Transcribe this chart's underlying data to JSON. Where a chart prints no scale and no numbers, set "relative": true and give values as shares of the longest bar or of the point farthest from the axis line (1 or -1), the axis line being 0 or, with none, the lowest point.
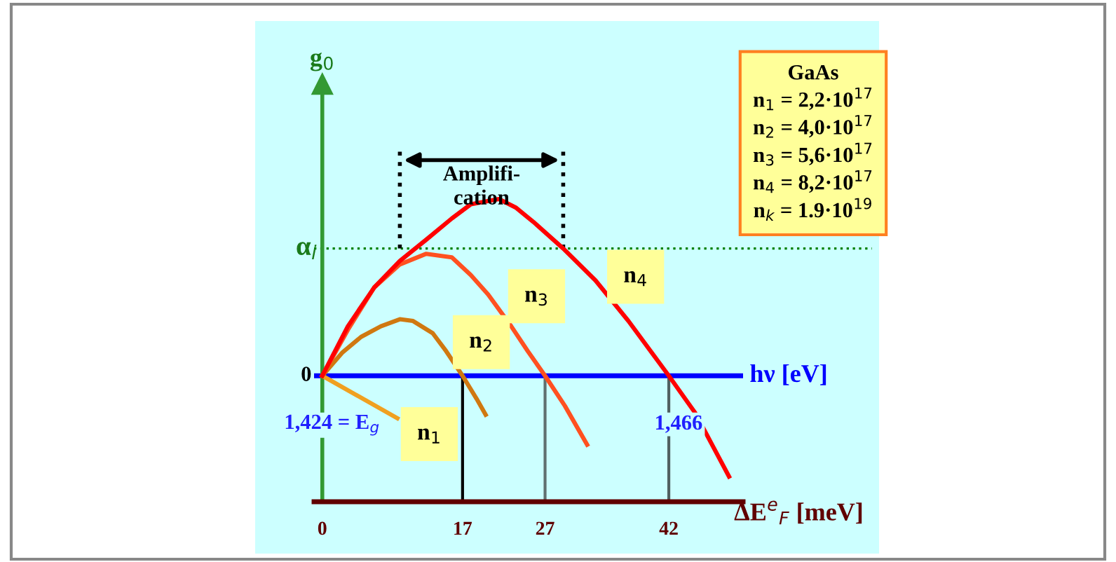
{
  "chart_data": {
    "type": "line",
    "relative": true,
    "xlabel": "ΔE$^{e}$$_{F}$ [meV]",
    "xlim": [
      -1,
      51
    ],
    "xticks": [
      0,
      17,
      27,
      42
    ],
    "series": [
      {
        "name": "n$_{1}$",
        "color": "#f0a020",
        "x": [
          0,
          9.1
        ],
        "values": [
          0,
          -0.24
        ]
      },
      {
        "name": "n$_{2}$",
        "color": "#d07810",
        "x": [
          0,
          2.4,
          4.7,
          7.1,
          9.4,
          11.0,
          13.4,
          15.0,
          17.0,
          18.7,
          19.8
        ],
        "values": [
          0,
          0.13,
          0.22,
          0.28,
          0.32,
          0.31,
          0.24,
          0.14,
          0,
          -0.13,
          -0.22
        ]
      },
      {
        "name": "n$_{3}$",
        "color": "#ff5020",
        "x": [
          0,
          3.1,
          6.3,
          9.4,
          12.6,
          15.7,
          18.0,
          20.1,
          22.9,
          24.9,
          27,
          29.4,
          32.1
        ],
        "values": [
          0,
          0.26,
          0.5,
          0.63,
          0.69,
          0.67,
          0.57,
          0.46,
          0.28,
          0.14,
          0,
          -0.17,
          -0.39
        ]
      },
      {
        "name": "n$_{4}$",
        "color": "#ff0000",
        "x": [
          0,
          3.1,
          6.3,
          9.4,
          12.6,
          15.7,
          18.0,
          21.4,
          23.5,
          25.6,
          29.2,
          33.1,
          37.1,
          42,
          45.2,
          49.3
        ],
        "values": [
          0,
          0.28,
          0.5,
          0.65,
          0.77,
          0.89,
          0.97,
          1.0,
          0.95,
          0.87,
          0.72,
          0.54,
          0.31,
          0,
          -0.21,
          -0.57
        ]
      }
    ],
    "ref_lines": [
      {
        "axis": "y",
        "value": 0.72,
        "label": "α$_{i}$",
        "color": "#008000",
        "line_style": "dotted"
      },
      {
        "axis": "y",
        "value": 0,
        "color": "#0000ff"
      },
      {
        "axis": "x",
        "value": 0,
        "color": "#339933"
      },
      {
        "axis": "x",
        "value": 9.4,
        "color": "#000000",
        "line_style": "dotted"
      },
      {
        "axis": "x",
        "value": 29.2,
        "color": "#000000",
        "line_style": "dotted"
      },
      {
        "axis": "x",
        "value": 17,
        "color": "#000000"
      },
      {
        "axis": "x",
        "value": 27,
        "color": "#607070"
      },
      {
        "axis": "x",
        "value": 42,
        "color": "#506060"
      }
    ],
    "annotations": [
      "0",
      "hν [eV]",
      "g$_{0}$",
      "Amplifi-\ncation",
      "GaAs",
      "n$_{1}$ = 2,2·10$^{17}$",
      "n$_{2}$ = 4,0·10$^{17}$",
      "n$_{3}$ = 5,6·10$^{17}$",
      "n$_{4}$ = 8,2·10$^{17}$",
      "n$_{k}$ = 1.9·10$^{19}$",
      {
        "text": "1,424 = E$_{g}$",
        "x": 0,
        "y": 0
      },
      {
        "text": "1,466",
        "x": 42,
        "y": 0
      }
    ]
  }
}
